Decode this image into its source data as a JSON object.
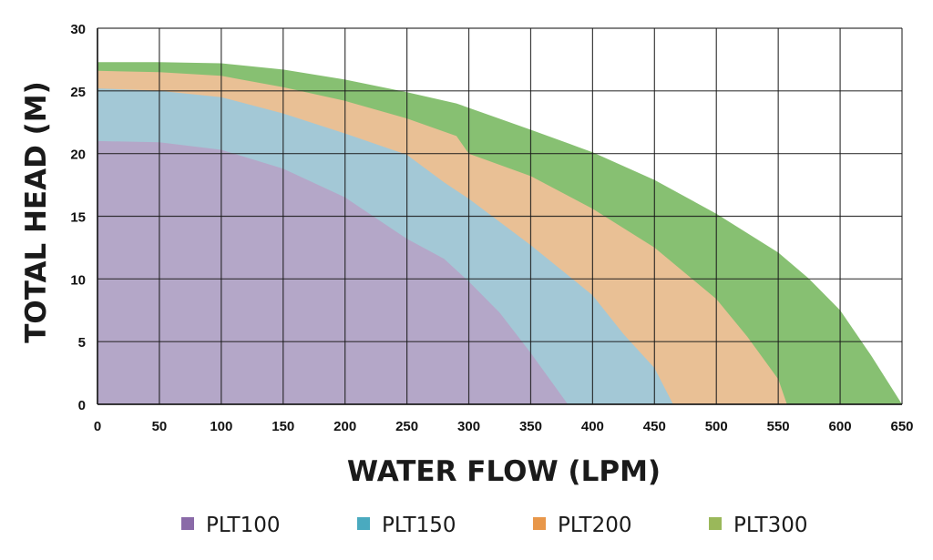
{
  "chart_data": {
    "type": "area",
    "title": "",
    "xlabel": "WATER FLOW (LPM)",
    "ylabel": "TOTAL HEAD (M)",
    "xlim": [
      0,
      650
    ],
    "ylim": [
      0,
      30
    ],
    "xticks": [
      "0",
      "50",
      "100",
      "150",
      "200",
      "250",
      "300",
      "350",
      "400",
      "450",
      "500",
      "550",
      "600",
      "650"
    ],
    "yticks": [
      "0",
      "5",
      "10",
      "15",
      "20",
      "25",
      "30"
    ],
    "grid": true,
    "legend_position": "bottom",
    "series": [
      {
        "name": "PLT300",
        "fill": "#87c072",
        "swatch": "#9ab85a",
        "x": [
          0,
          50,
          100,
          150,
          200,
          250,
          290,
          350,
          381,
          400,
          450,
          500,
          550,
          575,
          600,
          625,
          650
        ],
        "y": [
          27.3,
          27.3,
          27.2,
          26.7,
          25.9,
          24.9,
          24.0,
          21.9,
          20.8,
          20.1,
          17.9,
          15.2,
          12.1,
          10.0,
          7.5,
          3.9,
          0
        ]
      },
      {
        "name": "PLT200",
        "fill": "#e9c095",
        "swatch": "#e8974a",
        "x": [
          0,
          50,
          100,
          150,
          200,
          250,
          290,
          300,
          350,
          400,
          450,
          500,
          525,
          550,
          557
        ],
        "y": [
          26.6,
          26.5,
          26.2,
          25.3,
          24.2,
          22.8,
          21.4,
          20.0,
          18.2,
          15.6,
          12.5,
          8.4,
          5.4,
          2.0,
          0
        ]
      },
      {
        "name": "PLT150",
        "fill": "#a3c8d6",
        "swatch": "#4aaabf",
        "x": [
          0,
          50,
          100,
          150,
          200,
          250,
          280,
          300,
          350,
          400,
          425,
          450,
          465
        ],
        "y": [
          25.2,
          25.0,
          24.5,
          23.2,
          21.6,
          19.9,
          17.7,
          16.4,
          12.7,
          8.7,
          5.6,
          2.9,
          0
        ]
      },
      {
        "name": "PLT100",
        "fill": "#b4a7c8",
        "swatch": "#8a6aa8",
        "x": [
          0,
          50,
          100,
          150,
          200,
          250,
          280,
          300,
          325,
          350,
          380
        ],
        "y": [
          21.0,
          20.9,
          20.3,
          18.8,
          16.5,
          13.2,
          11.6,
          9.8,
          7.3,
          4.1,
          0
        ]
      }
    ],
    "legend": [
      {
        "label": "PLT100",
        "color": "#8a6aa8"
      },
      {
        "label": "PLT150",
        "color": "#4aaabf"
      },
      {
        "label": "PLT200",
        "color": "#e8974a"
      },
      {
        "label": "PLT300",
        "color": "#9ab85a"
      }
    ]
  }
}
